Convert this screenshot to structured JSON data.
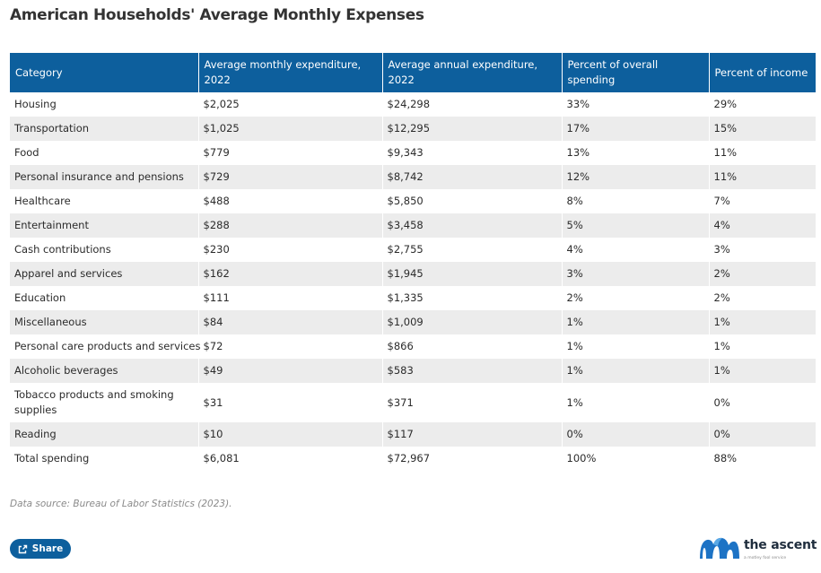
{
  "title": "American Households' Average Monthly Expenses",
  "chart_data": {
    "type": "table",
    "title": "American Households' Average Monthly Expenses",
    "columns": [
      "Category",
      "Average monthly expenditure, 2022",
      "Average annual expenditure, 2022",
      "Percent of overall spending",
      "Percent of income"
    ],
    "rows": [
      [
        "Housing",
        "$2,025",
        "$24,298",
        "33%",
        "29%"
      ],
      [
        "Transportation",
        "$1,025",
        "$12,295",
        "17%",
        "15%"
      ],
      [
        "Food",
        "$779",
        "$9,343",
        "13%",
        "11%"
      ],
      [
        "Personal insurance and pensions",
        "$729",
        "$8,742",
        "12%",
        "11%"
      ],
      [
        "Healthcare",
        "$488",
        "$5,850",
        "8%",
        "7%"
      ],
      [
        "Entertainment",
        "$288",
        "$3,458",
        "5%",
        "4%"
      ],
      [
        "Cash contributions",
        "$230",
        "$2,755",
        "4%",
        "3%"
      ],
      [
        "Apparel and services",
        "$162",
        "$1,945",
        "3%",
        "2%"
      ],
      [
        "Education",
        "$111",
        "$1,335",
        "2%",
        "2%"
      ],
      [
        "Miscellaneous",
        "$84",
        "$1,009",
        "1%",
        "1%"
      ],
      [
        "Personal care products and services",
        "$72",
        "$866",
        "1%",
        "1%"
      ],
      [
        "Alcoholic beverages",
        "$49",
        "$583",
        "1%",
        "1%"
      ],
      [
        "Tobacco products and smoking supplies",
        "$31",
        "$371",
        "1%",
        "0%"
      ],
      [
        "Reading",
        "$10",
        "$117",
        "0%",
        "0%"
      ],
      [
        "Total spending",
        "$6,081",
        "$72,967",
        "100%",
        "88%"
      ]
    ]
  },
  "source_note": "Data source: Bureau of Labor Statistics (2023).",
  "share": {
    "label": "Share",
    "icon": "share-icon"
  },
  "brand": {
    "name": "the ascent",
    "tagline": "a motley fool service",
    "logo_icon": "ascent-logo-icon"
  },
  "colors": {
    "header_bg": "#0d5f9d",
    "stripe": "#ececec",
    "logo_blue": "#1d73c5",
    "logo_light": "#5aa9e6"
  }
}
